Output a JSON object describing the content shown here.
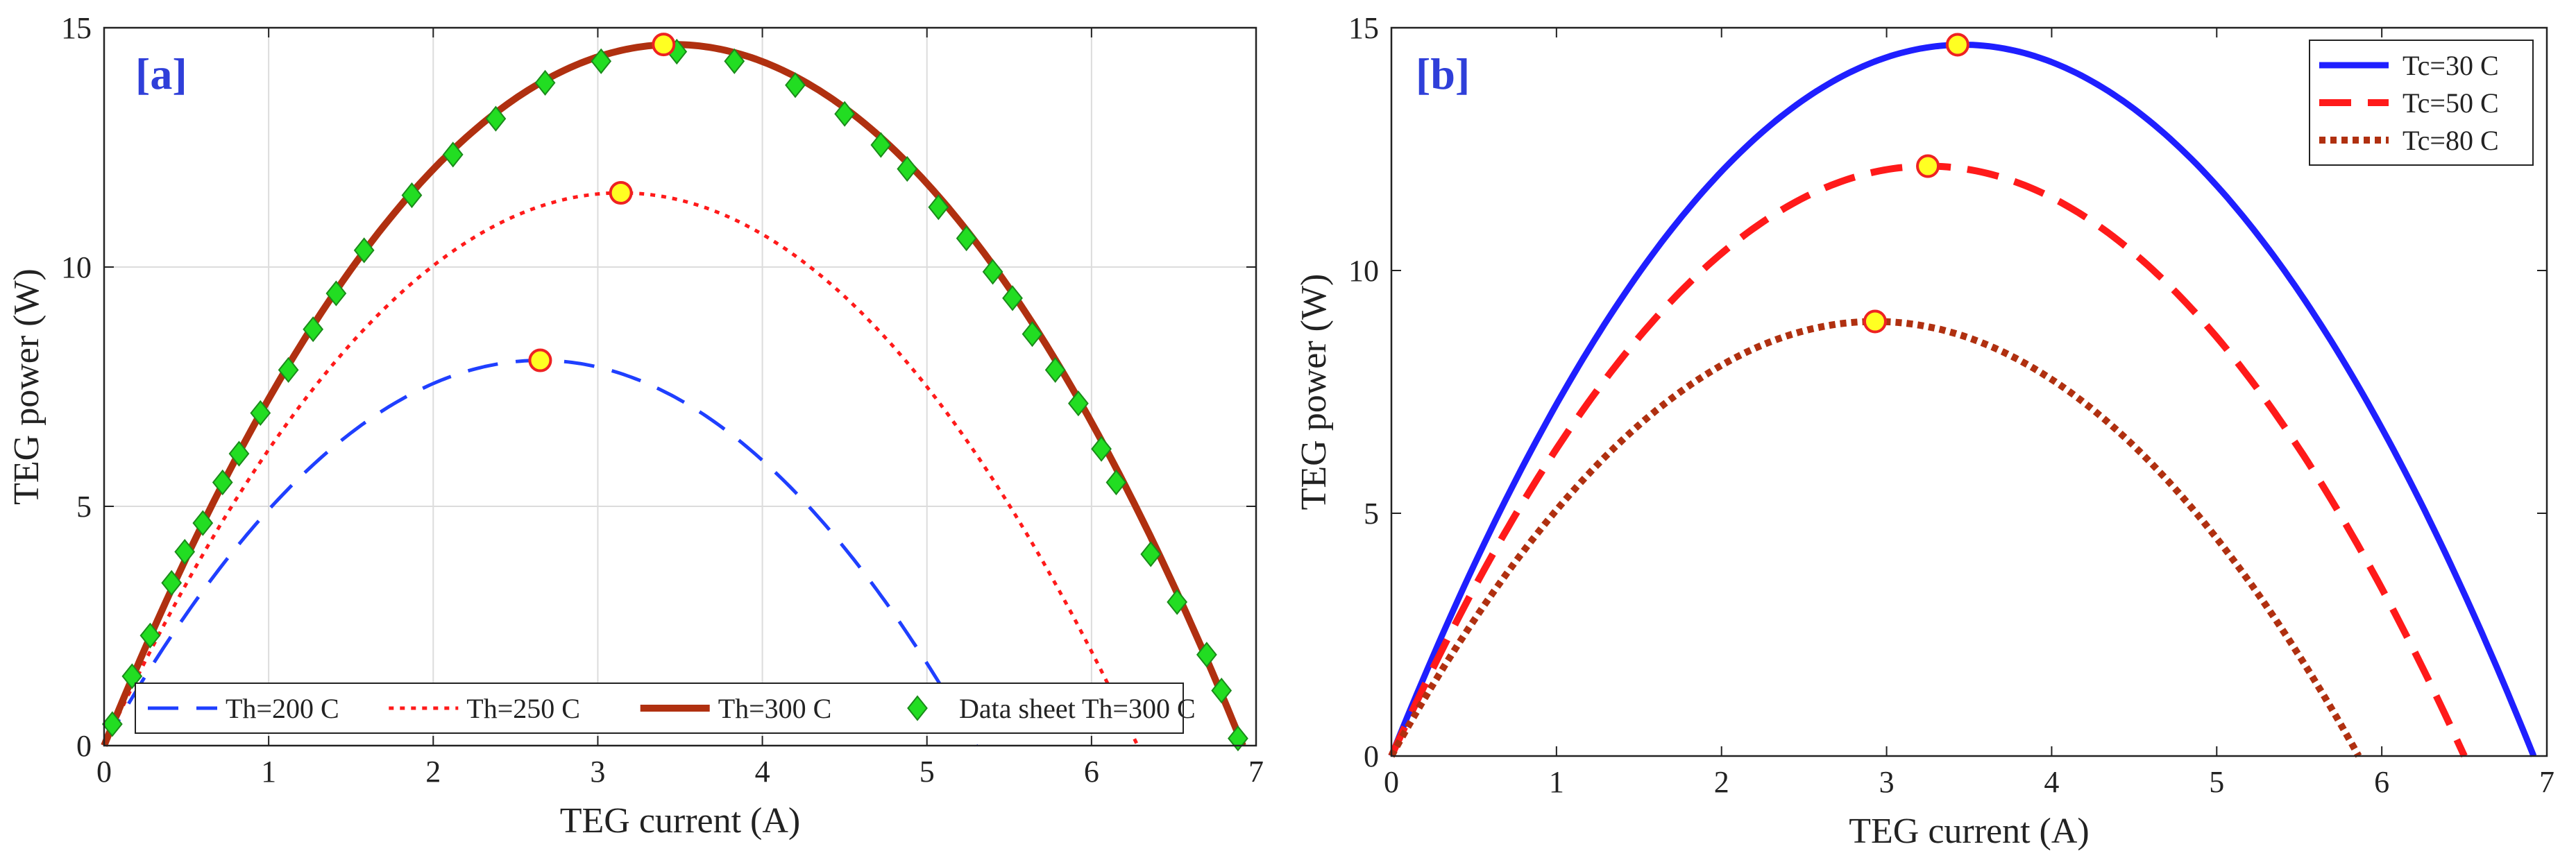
{
  "chart_data": [
    {
      "type": "line",
      "panel_label": "[a]",
      "xlabel": "TEG current (A)",
      "ylabel": "TEG power (W)",
      "xlim": [
        0,
        7
      ],
      "ylim": [
        0,
        15
      ],
      "xticks": [
        "0",
        "1",
        "2",
        "3",
        "4",
        "5",
        "6",
        "7"
      ],
      "yticks": [
        "0",
        "5",
        "10",
        "15"
      ],
      "grid": true,
      "legend_position": "bottom",
      "series": [
        {
          "name": "Th=200 C",
          "kind": "parabola",
          "i_short": 5.3,
          "p_max": 8.05,
          "color": "#1f3fff",
          "dash": "44,26",
          "width": 5
        },
        {
          "name": "Th=250 C",
          "kind": "parabola",
          "i_short": 6.28,
          "p_max": 11.55,
          "color": "#ff1a1a",
          "dash": "7,9",
          "width": 5
        },
        {
          "name": "Th=300 C",
          "kind": "parabola",
          "i_short": 6.92,
          "p_max": 14.65,
          "color": "#b03010",
          "dash": "",
          "width": 10
        },
        {
          "name": "Data sheet Th=300 C",
          "kind": "markers",
          "color": "#22dd22",
          "x": [
            0.05,
            0.17,
            0.28,
            0.41,
            0.49,
            0.6,
            0.72,
            0.82,
            0.95,
            1.12,
            1.27,
            1.41,
            1.58,
            1.87,
            2.12,
            2.38,
            2.68,
            3.02,
            3.48,
            3.83,
            4.2,
            4.5,
            4.72,
            4.88,
            5.07,
            5.24,
            5.4,
            5.52,
            5.64,
            5.78,
            5.92,
            6.06,
            6.15,
            6.36,
            6.52,
            6.7,
            6.79,
            6.89
          ],
          "y": [
            0.45,
            1.45,
            2.3,
            3.4,
            4.05,
            4.65,
            5.5,
            6.1,
            6.95,
            7.85,
            8.7,
            9.45,
            10.35,
            11.5,
            12.35,
            13.1,
            13.85,
            14.3,
            14.5,
            14.3,
            13.8,
            13.2,
            12.55,
            12.05,
            11.25,
            10.6,
            9.9,
            9.35,
            8.6,
            7.85,
            7.15,
            6.2,
            5.5,
            4.0,
            3.0,
            1.9,
            1.15,
            0.15
          ]
        }
      ],
      "max_points": [
        {
          "x": 2.65,
          "y": 8.05
        },
        {
          "x": 3.14,
          "y": 11.55
        },
        {
          "x": 3.4,
          "y": 14.65
        }
      ],
      "legend": [
        "Th=200 C",
        "Th=250 C",
        "Th=300 C",
        "Data sheet Th=300 C"
      ]
    },
    {
      "type": "line",
      "panel_label": "[b]",
      "xlabel": "TEG current (A)",
      "ylabel": "TEG power (W)",
      "xlim": [
        0,
        7
      ],
      "ylim": [
        0,
        15
      ],
      "xticks": [
        "0",
        "1",
        "2",
        "3",
        "4",
        "5",
        "6",
        "7"
      ],
      "yticks": [
        "0",
        "5",
        "10",
        "15"
      ],
      "grid": false,
      "legend_position": "top-right",
      "series": [
        {
          "name": "Tc=30 C",
          "kind": "parabola",
          "i_short": 6.92,
          "p_max": 14.65,
          "color": "#1f1fff",
          "dash": "",
          "width": 9
        },
        {
          "name": "Tc=50 C",
          "kind": "parabola",
          "i_short": 6.5,
          "p_max": 12.15,
          "color": "#ff1a1a",
          "dash": "46,24",
          "width": 10
        },
        {
          "name": "Tc=80 C",
          "kind": "parabola",
          "i_short": 5.86,
          "p_max": 8.95,
          "color": "#b03010",
          "dash": "9,7",
          "width": 10
        }
      ],
      "max_points": [
        {
          "x": 3.43,
          "y": 14.65
        },
        {
          "x": 3.25,
          "y": 12.15
        },
        {
          "x": 2.93,
          "y": 8.95
        }
      ],
      "legend": [
        "Tc=30 C",
        "Tc=50 C",
        "Tc=80 C"
      ]
    }
  ]
}
